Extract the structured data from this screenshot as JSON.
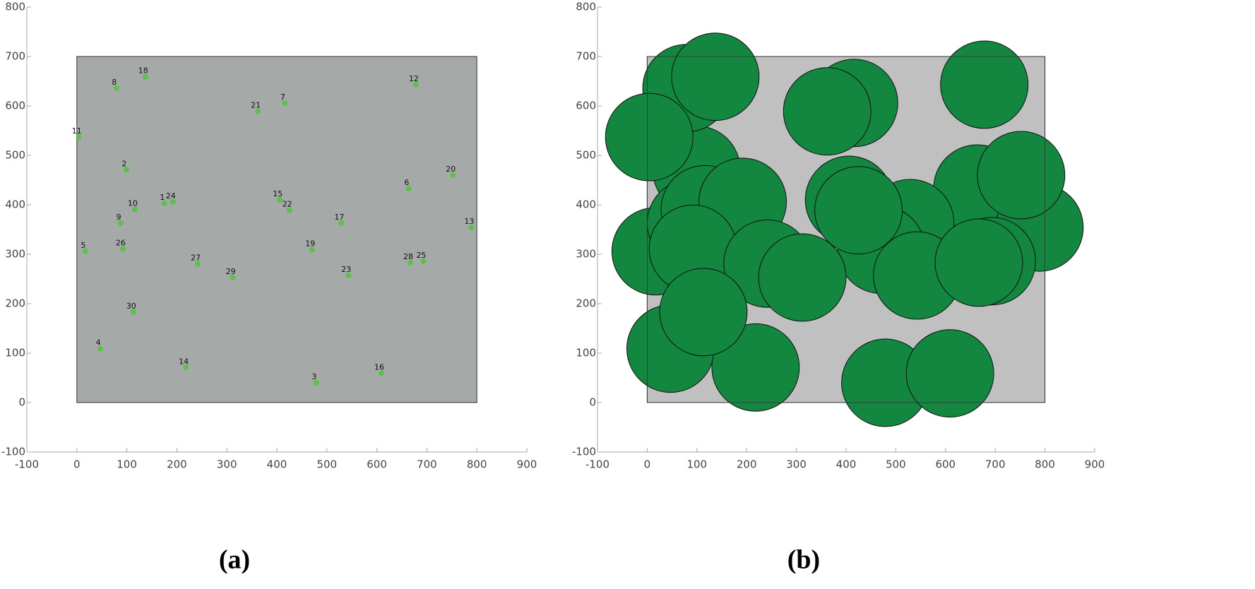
{
  "chart_data": [
    {
      "type": "scatter",
      "caption": "(a)",
      "labels": [
        "1",
        "2",
        "3",
        "4",
        "5",
        "6",
        "7",
        "8",
        "9",
        "10",
        "11",
        "12",
        "13",
        "14",
        "15",
        "16",
        "17",
        "18",
        "19",
        "20",
        "21",
        "22",
        "23",
        "24",
        "25",
        "26",
        "27",
        "28",
        "29",
        "30"
      ],
      "x": [
        175,
        99,
        479,
        47,
        17,
        664,
        416,
        79,
        88,
        116,
        4,
        678,
        789,
        218,
        406,
        609,
        529,
        137,
        471,
        752,
        362,
        425,
        543,
        192,
        693,
        92,
        242,
        667,
        312,
        113
      ],
      "y": [
        403,
        471,
        40,
        109,
        306,
        433,
        606,
        636,
        363,
        391,
        537,
        643,
        354,
        71,
        410,
        59,
        363,
        659,
        309,
        460,
        589,
        389,
        257,
        406,
        286,
        311,
        281,
        283,
        253,
        183
      ],
      "color": "#5cc04a",
      "field": {
        "xlim": [
          0,
          800
        ],
        "ylim": [
          0,
          700
        ],
        "color": "#a5aaa8"
      },
      "xlim": [
        -100,
        900
      ],
      "ylim": [
        -100,
        800
      ],
      "xticks": [
        -100,
        0,
        100,
        200,
        300,
        400,
        500,
        600,
        700,
        800,
        900
      ],
      "yticks": [
        -100,
        0,
        100,
        200,
        300,
        400,
        500,
        600,
        700,
        800
      ]
    },
    {
      "type": "disk",
      "caption": "(b)",
      "x": [
        175,
        99,
        479,
        47,
        17,
        664,
        416,
        79,
        88,
        116,
        4,
        678,
        789,
        218,
        406,
        609,
        529,
        137,
        471,
        752,
        362,
        425,
        543,
        192,
        693,
        92,
        242,
        667,
        312,
        113
      ],
      "y": [
        403,
        471,
        40,
        109,
        306,
        433,
        606,
        636,
        363,
        391,
        537,
        643,
        354,
        71,
        410,
        59,
        363,
        659,
        309,
        460,
        589,
        389,
        257,
        406,
        286,
        311,
        281,
        283,
        253,
        183
      ],
      "radius": 88,
      "color": "#138640",
      "field": {
        "xlim": [
          0,
          800
        ],
        "ylim": [
          0,
          700
        ],
        "color": "#c0c0c0"
      },
      "xlim": [
        -100,
        900
      ],
      "ylim": [
        -100,
        800
      ],
      "xticks": [
        -100,
        0,
        100,
        200,
        300,
        400,
        500,
        600,
        700,
        800,
        900
      ],
      "yticks": [
        -100,
        0,
        100,
        200,
        300,
        400,
        500,
        600,
        700,
        800
      ]
    }
  ]
}
